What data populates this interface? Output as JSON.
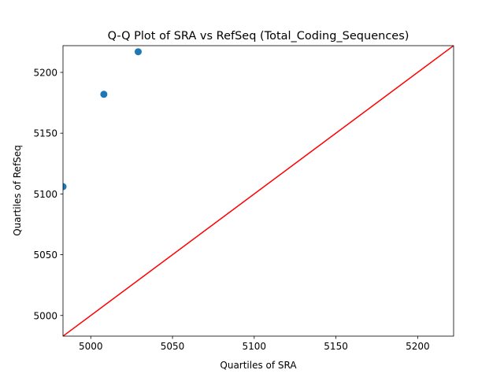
{
  "chart_data": {
    "type": "scatter",
    "title": "Q-Q Plot of SRA vs RefSeq (Total_Coding_Sequences)",
    "xlabel": "Quartiles of SRA",
    "ylabel": "Quartiles of RefSeq",
    "xlim": [
      4983,
      5222
    ],
    "ylim": [
      4983,
      5222
    ],
    "xticks": [
      5000,
      5050,
      5100,
      5150,
      5200
    ],
    "yticks": [
      5000,
      5050,
      5100,
      5150,
      5200
    ],
    "grid": false,
    "series": [
      {
        "points": [
          {
            "x": 4983,
            "y": 5106
          },
          {
            "x": 5008,
            "y": 5182
          },
          {
            "x": 5029,
            "y": 5217
          }
        ],
        "color": "#1f77b4"
      }
    ],
    "reference_line": {
      "from": [
        4983,
        4983
      ],
      "to": [
        5222,
        5222
      ],
      "color": "#ff0000"
    }
  }
}
